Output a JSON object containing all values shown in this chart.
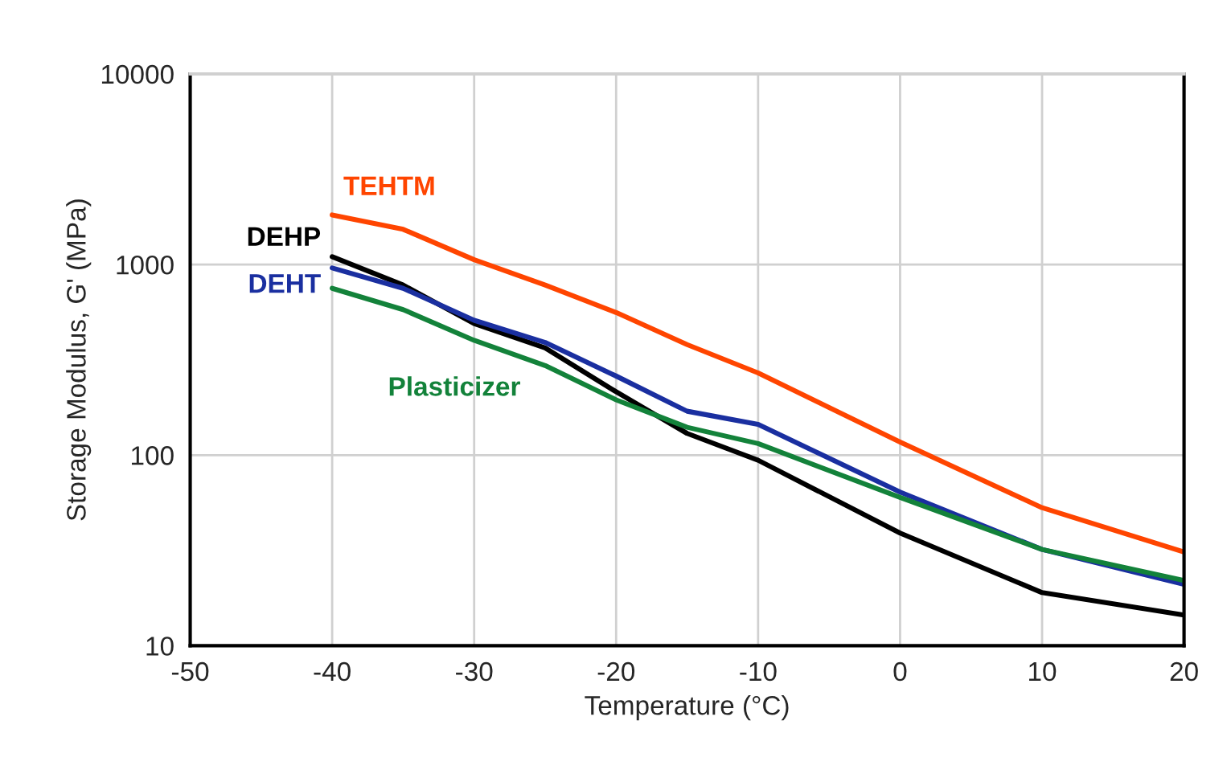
{
  "chart_data": {
    "type": "line",
    "xlabel": "Temperature (°C)",
    "ylabel": "Storage Modulus, G' (MPa)",
    "x": [
      -40,
      -35,
      -30,
      -25,
      -20,
      -15,
      -10,
      0,
      10,
      20
    ],
    "series": [
      {
        "name": "TEHTM",
        "color": "#ff4500",
        "values": [
          1820,
          1530,
          1060,
          780,
          560,
          380,
          270,
          117,
          53,
          31
        ]
      },
      {
        "name": "DEHP",
        "color": "#000000",
        "values": [
          1100,
          780,
          490,
          365,
          215,
          130,
          94,
          39,
          19,
          14.5
        ]
      },
      {
        "name": "DEHT",
        "color": "#1a2fa0",
        "values": [
          960,
          750,
          510,
          390,
          260,
          170,
          145,
          64,
          32,
          21
        ]
      },
      {
        "name": "Plasticizer",
        "color": "#13823a",
        "values": [
          750,
          580,
          400,
          295,
          195,
          140,
          115,
          60,
          32,
          22
        ]
      }
    ],
    "log": "y",
    "xlim": [
      -50,
      20
    ],
    "xticks": [
      -50,
      -40,
      -30,
      -20,
      -10,
      0,
      10,
      20
    ],
    "ylim": [
      10,
      10000
    ],
    "yticks": [
      10,
      100,
      1000,
      10000
    ],
    "grid": true,
    "legend": false,
    "marker": "none",
    "line_style": "solid"
  }
}
